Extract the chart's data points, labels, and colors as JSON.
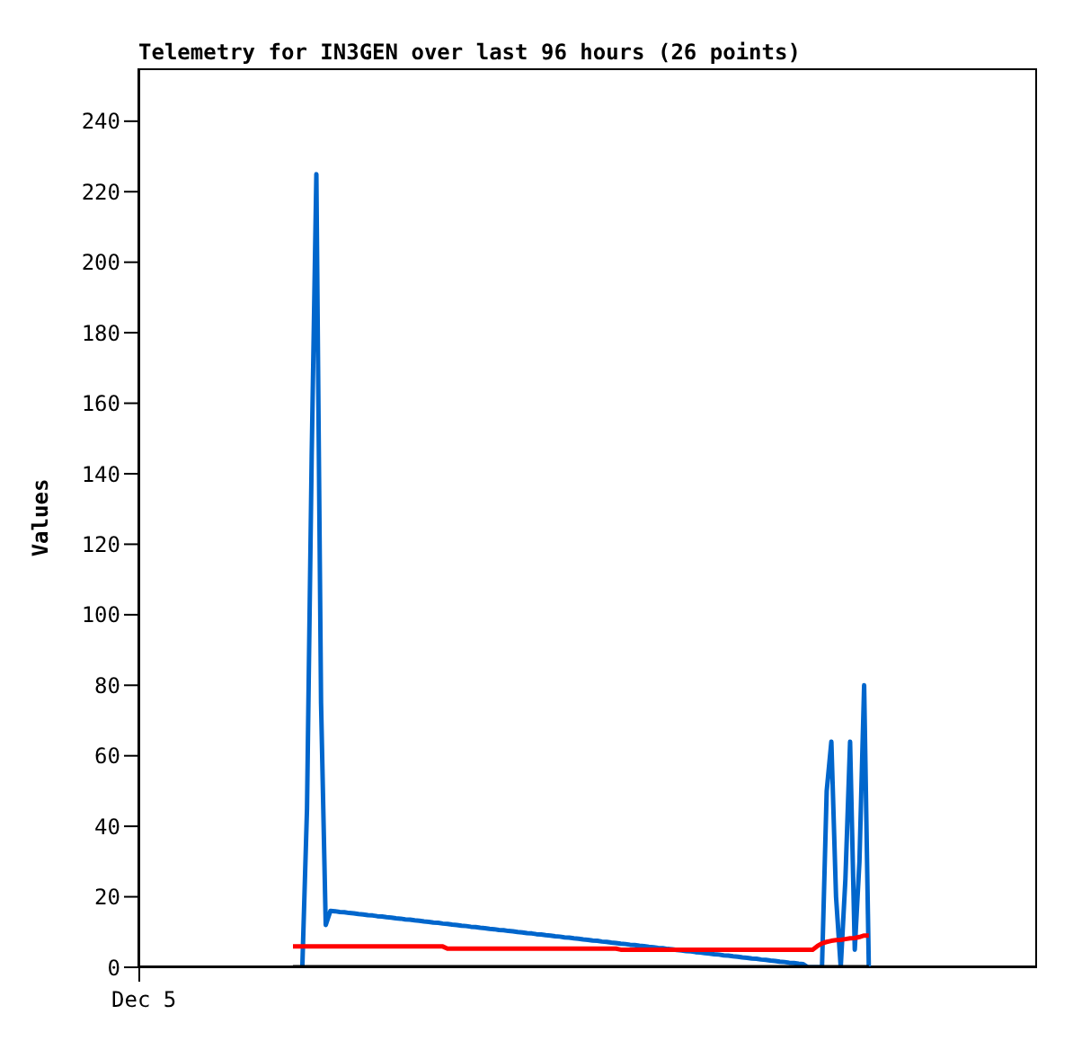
{
  "chart_data": {
    "type": "line",
    "title": "Telemetry for IN3GEN over last 96 hours (26 points)",
    "ylabel": "Values",
    "annotations": [
      "Dec 5"
    ],
    "categories": [
      null,
      null,
      null,
      null,
      null,
      null,
      null,
      null,
      null,
      null,
      null,
      null,
      null,
      null,
      null,
      null,
      null,
      null,
      null,
      null,
      null,
      null,
      null,
      null,
      null,
      null,
      null,
      null,
      null,
      null,
      null,
      null,
      null,
      null,
      null,
      null,
      null,
      null,
      null,
      null,
      null,
      null,
      null,
      null,
      null,
      null,
      null,
      null,
      null,
      null,
      null,
      null,
      null,
      null,
      null,
      null,
      null,
      null,
      null,
      null,
      null,
      null,
      null,
      null,
      null,
      null,
      null,
      null,
      null,
      null,
      null,
      null,
      null,
      null,
      null,
      null,
      null,
      null,
      null,
      null,
      null,
      null,
      null,
      null,
      null,
      null,
      null,
      null,
      null,
      null,
      null,
      null,
      null,
      null,
      null,
      null,
      null,
      null,
      null,
      null,
      null,
      null,
      null,
      null,
      null,
      null,
      null,
      null,
      null,
      null,
      null,
      null,
      null,
      null,
      null,
      null,
      null,
      null,
      null,
      null,
      null,
      null,
      null,
      null,
      null
    ],
    "ylim": [
      0,
      255
    ],
    "yticks": [
      0,
      20,
      40,
      60,
      80,
      100,
      120,
      140,
      160,
      180,
      200,
      220,
      240
    ],
    "grid": false,
    "legend": false,
    "marker": "none",
    "line_style": "solid",
    "series": [
      {
        "color": "#0066cc",
        "values": [
          null,
          null,
          0,
          45,
          145,
          225,
          75,
          12,
          16.0,
          15.9,
          15.7,
          15.6,
          15.4,
          15.3,
          15.1,
          15.0,
          14.8,
          14.7,
          14.5,
          14.4,
          14.2,
          14.1,
          13.9,
          13.8,
          13.6,
          13.5,
          13.3,
          13.2,
          13.0,
          12.9,
          12.7,
          12.6,
          12.4,
          12.3,
          12.1,
          12.0,
          11.8,
          11.7,
          11.5,
          11.4,
          11.2,
          11.1,
          10.9,
          10.8,
          10.6,
          10.5,
          10.3,
          10.2,
          10.0,
          9.9,
          9.7,
          9.6,
          9.4,
          9.3,
          9.1,
          9.0,
          8.8,
          8.7,
          8.5,
          8.4,
          8.2,
          8.1,
          7.9,
          7.8,
          7.6,
          7.5,
          7.3,
          7.2,
          7.0,
          6.9,
          6.7,
          6.6,
          6.4,
          6.3,
          6.1,
          6.0,
          5.8,
          5.7,
          5.5,
          5.4,
          5.2,
          5.1,
          4.9,
          4.8,
          4.6,
          4.5,
          4.3,
          4.2,
          4.0,
          3.9,
          3.7,
          3.6,
          3.4,
          3.3,
          3.1,
          3.0,
          2.8,
          2.7,
          2.5,
          2.4,
          2.2,
          2.1,
          1.9,
          1.8,
          1.6,
          1.5,
          1.3,
          1.2,
          1.0,
          0.9,
          0,
          0,
          0,
          0,
          50,
          64,
          20,
          0,
          25,
          64,
          5,
          30,
          80,
          0,
          null
        ]
      },
      {
        "color": "#ff0000",
        "values": [
          5.9,
          5.9,
          5.9,
          5.9,
          5.9,
          5.9,
          5.9,
          5.9,
          5.9,
          5.9,
          5.9,
          5.9,
          5.9,
          5.9,
          5.9,
          5.9,
          5.9,
          5.9,
          5.9,
          5.9,
          5.9,
          5.9,
          5.9,
          5.9,
          5.9,
          5.9,
          5.9,
          5.9,
          5.9,
          5.9,
          5.9,
          5.9,
          5.9,
          5.3,
          5.3,
          5.3,
          5.3,
          5.3,
          5.3,
          5.3,
          5.3,
          5.3,
          5.3,
          5.3,
          5.3,
          5.3,
          5.3,
          5.3,
          5.3,
          5.3,
          5.3,
          5.3,
          5.3,
          5.3,
          5.3,
          5.3,
          5.3,
          5.3,
          5.3,
          5.3,
          5.3,
          5.3,
          5.3,
          5.3,
          5.3,
          5.3,
          5.3,
          5.3,
          5.3,
          5.3,
          5.0,
          5.0,
          5.0,
          5.0,
          5.0,
          5.0,
          5.0,
          5.0,
          5.0,
          5.0,
          5.0,
          5.0,
          5.0,
          5.0,
          5.0,
          5.0,
          5.0,
          5.0,
          5.0,
          5.0,
          5.0,
          5.0,
          5.0,
          5.0,
          5.0,
          5.0,
          5.0,
          5.0,
          5.0,
          5.0,
          5.0,
          5.0,
          5.0,
          5.0,
          5.0,
          5.0,
          5.0,
          5.0,
          5.0,
          5.0,
          5.0,
          5.0,
          6.0,
          6.8,
          7.2,
          7.5,
          7.7,
          7.8,
          8.0,
          8.2,
          8.3,
          8.6,
          9.0,
          9.0,
          null
        ]
      },
      {
        "color": "#000000",
        "values": [
          0,
          0,
          0,
          0,
          0,
          0,
          0,
          0,
          0,
          0,
          0,
          0,
          0,
          0,
          0,
          0,
          0,
          0,
          0,
          0,
          0,
          0,
          0,
          0,
          0,
          0,
          0,
          0,
          0,
          0,
          0,
          0,
          0,
          0,
          0,
          0,
          0,
          0,
          0,
          0,
          0,
          0,
          0,
          0,
          0,
          0,
          0,
          0,
          0,
          0,
          0,
          0,
          0,
          0,
          0,
          0,
          0,
          0,
          0,
          0,
          0,
          0,
          0,
          0,
          0,
          0,
          0,
          0,
          0,
          0,
          0,
          0,
          0,
          0,
          0,
          0,
          0,
          0,
          0,
          0,
          0,
          0,
          0,
          0,
          0,
          0,
          0,
          0,
          0,
          0,
          0,
          0,
          0,
          0,
          0,
          0,
          0,
          0,
          0,
          0,
          0,
          0,
          0,
          0,
          0,
          0,
          0,
          0,
          0,
          0,
          0,
          0,
          0,
          0,
          0,
          0,
          0,
          0,
          0,
          0,
          0,
          0,
          0,
          0,
          null
        ]
      }
    ]
  }
}
